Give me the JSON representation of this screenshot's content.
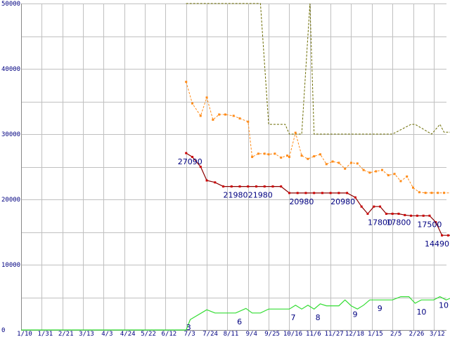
{
  "chart_data": {
    "type": "line",
    "ylim": [
      0,
      50000
    ],
    "yticks": [
      "0",
      "10000",
      "20000",
      "30000",
      "40000",
      "50000"
    ],
    "xticks": [
      "1/10",
      "1/31",
      "2/21",
      "3/13",
      "4/3",
      "4/24",
      "5/22",
      "6/12",
      "7/3",
      "7/24",
      "8/11",
      "9/4",
      "9/25",
      "10/16",
      "11/6",
      "11/27",
      "12/18",
      "1/15",
      "2/5",
      "2/26",
      "3/12"
    ],
    "grid": true,
    "colors": {
      "background": "#ffffff",
      "grid": "#c0c0c0",
      "axis_text": "#000080",
      "price": "#8b0000",
      "price_marker": "#cc0000",
      "avg": "#ff8c1a",
      "max": "#6b6b00",
      "count": "#33dd33"
    },
    "series": [
      {
        "key": "max",
        "x": [
          8.0,
          8.9,
          9.3,
          9.9,
          10.4,
          11.0,
          11.6,
          12.0,
          12.8,
          13.0,
          13.6,
          14.0,
          14.2,
          16.0,
          17.0,
          18.0,
          18.9,
          19.1,
          19.9,
          20.3,
          20.5,
          21.0
        ],
        "y": [
          50000,
          50000,
          50000,
          50000,
          50000,
          50000,
          50000,
          31500,
          31500,
          30000,
          30000,
          50000,
          30000,
          30000,
          30000,
          30000,
          31500,
          31500,
          30000,
          31500,
          30300,
          30300
        ]
      },
      {
        "key": "avg",
        "x": [
          8.0,
          8.3,
          8.7,
          9.0,
          9.3,
          9.6,
          9.9,
          10.3,
          10.6,
          11.0,
          11.2,
          11.5,
          11.8,
          12.0,
          12.3,
          12.6,
          12.9,
          13.0,
          13.3,
          13.6,
          13.9,
          14.2,
          14.5,
          14.8,
          15.1,
          15.4,
          15.7,
          16.0,
          16.3,
          16.6,
          16.9,
          17.2,
          17.5,
          17.8,
          18.1,
          18.4,
          18.7,
          19.0,
          19.3,
          19.6,
          19.9,
          20.2,
          20.5,
          21.0
        ],
        "y": [
          38000,
          34700,
          32800,
          35600,
          32200,
          33000,
          33000,
          32800,
          32400,
          31900,
          26500,
          27000,
          27000,
          26900,
          27000,
          26400,
          26700,
          26500,
          30200,
          26700,
          26200,
          26600,
          26900,
          25400,
          25800,
          25600,
          24700,
          25600,
          25500,
          24500,
          24100,
          24300,
          24500,
          23700,
          23900,
          22800,
          23500,
          21800,
          21100,
          21000,
          21000,
          21000,
          21000,
          21000
        ]
      },
      {
        "key": "price",
        "x": [
          8.0,
          8.3,
          8.7,
          9.0,
          9.4,
          9.8,
          10.2,
          10.6,
          11.0,
          11.4,
          11.8,
          12.2,
          12.6,
          13.0,
          13.4,
          13.8,
          14.2,
          14.6,
          15.0,
          15.4,
          15.8,
          16.2,
          16.5,
          16.8,
          17.1,
          17.4,
          17.7,
          18.0,
          18.3,
          18.6,
          18.9,
          19.2,
          19.5,
          19.8,
          20.1,
          20.4,
          20.7,
          21.0
        ],
        "y": [
          27090,
          26500,
          25000,
          22900,
          22600,
          21980,
          21980,
          21980,
          21980,
          21980,
          21980,
          21980,
          21980,
          20980,
          20980,
          20980,
          20980,
          20980,
          20980,
          20980,
          20980,
          20300,
          18900,
          17800,
          18900,
          18900,
          17800,
          17800,
          17800,
          17600,
          17500,
          17500,
          17500,
          17500,
          16500,
          14490,
          14490,
          14490
        ]
      },
      {
        "key": "count",
        "x": [
          0,
          1,
          2,
          3,
          4,
          5,
          6,
          7,
          8.0,
          8.2,
          9.0,
          9.4,
          10.0,
          10.4,
          10.9,
          11.2,
          11.6,
          12.0,
          12.4,
          12.8,
          13.0,
          13.3,
          13.6,
          13.9,
          14.2,
          14.5,
          14.8,
          15.1,
          15.4,
          15.7,
          16.0,
          16.3,
          16.6,
          16.9,
          17.2,
          17.6,
          18.0,
          18.4,
          18.8,
          19.1,
          19.4,
          19.7,
          20.0,
          20.3,
          20.6,
          21.0
        ],
        "y": [
          0,
          0,
          0,
          0,
          0,
          0,
          0,
          0,
          0,
          1600,
          3100,
          2600,
          2600,
          2600,
          3300,
          2600,
          2600,
          3200,
          3200,
          3200,
          3200,
          3800,
          3200,
          3800,
          3200,
          4000,
          3700,
          3700,
          3700,
          4600,
          3700,
          3200,
          3800,
          4600,
          4600,
          4600,
          4600,
          5100,
          5100,
          4100,
          4600,
          4600,
          4600,
          5100,
          4600,
          5100
        ]
      }
    ],
    "annotations": {
      "price": [
        {
          "x": 8.0,
          "y": 27090,
          "text": "27090"
        },
        {
          "x": 9.8,
          "y": 21980,
          "text": "21980"
        },
        {
          "x": 11.0,
          "y": 21980,
          "text": "21980"
        },
        {
          "x": 13.0,
          "y": 20980,
          "text": "20980"
        },
        {
          "x": 15.0,
          "y": 20980,
          "text": "20980"
        },
        {
          "x": 16.8,
          "y": 17800,
          "text": "17800"
        },
        {
          "x": 17.7,
          "y": 17800,
          "text": "17800"
        },
        {
          "x": 19.2,
          "y": 17500,
          "text": "17500"
        },
        {
          "x": 20.7,
          "y": 14490,
          "text": "14490"
        }
      ],
      "count": [
        {
          "x": 8.0,
          "y": 0,
          "text": "3"
        },
        {
          "x": 10.4,
          "y": 2600,
          "text": "6"
        },
        {
          "x": 13.0,
          "y": 3200,
          "text": "7"
        },
        {
          "x": 14.2,
          "y": 3200,
          "text": "8"
        },
        {
          "x": 16.0,
          "y": 3700,
          "text": "9"
        },
        {
          "x": 17.2,
          "y": 4600,
          "text": "9"
        },
        {
          "x": 19.1,
          "y": 4100,
          "text": "10"
        },
        {
          "x": 21.0,
          "y": 5100,
          "text": "10"
        }
      ]
    }
  }
}
